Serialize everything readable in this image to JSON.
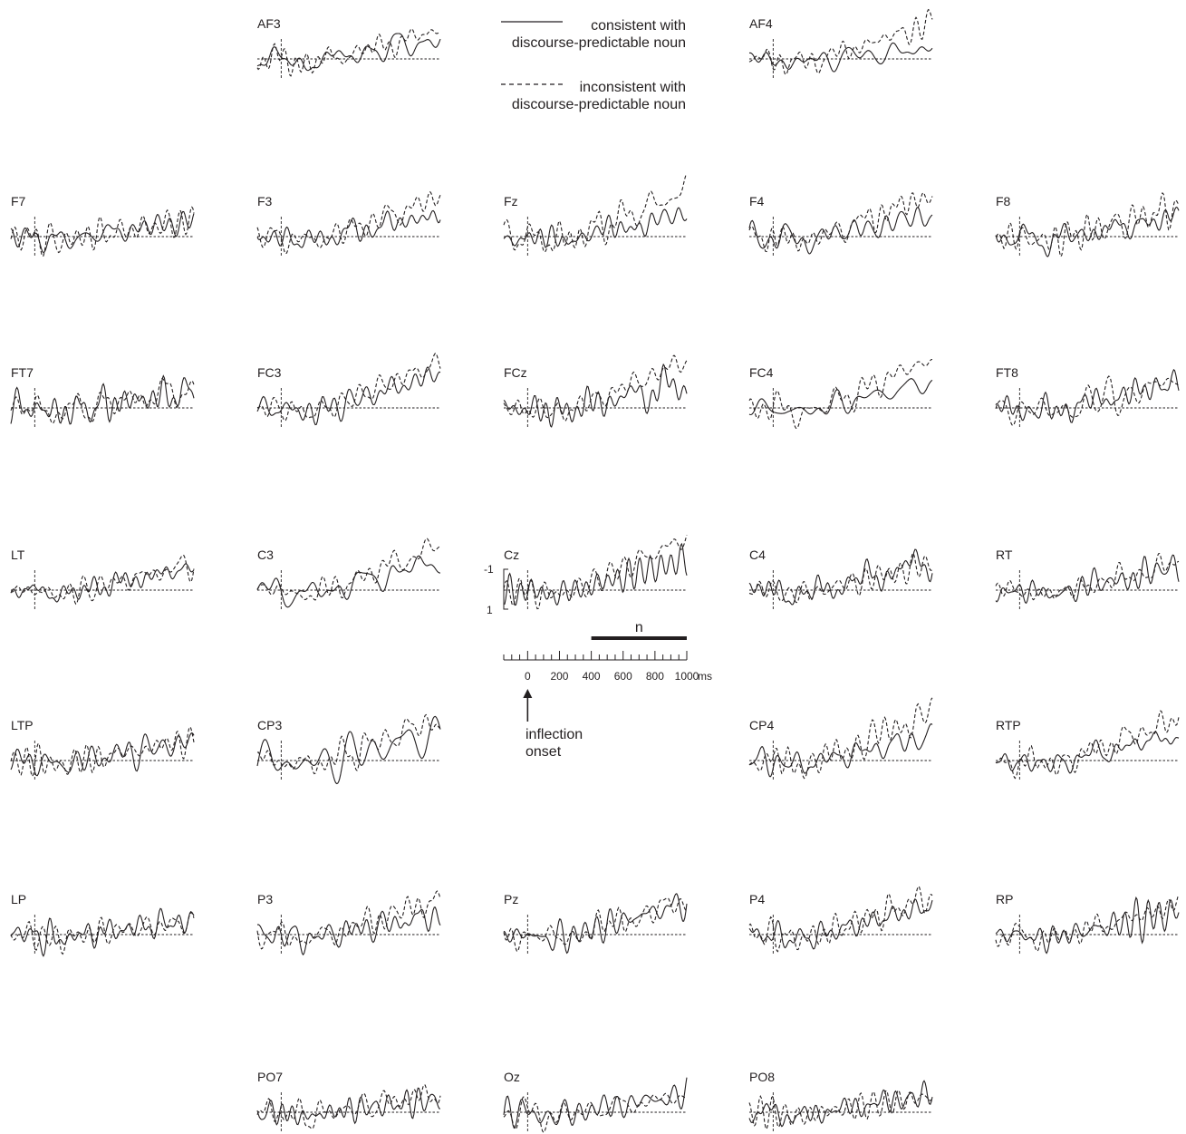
{
  "chart_data": {
    "type": "line",
    "legend": {
      "placement": "top-center",
      "entries": [
        {
          "line_style": "solid",
          "label_line1": "consistent with",
          "label_line2": "discourse-predictable noun"
        },
        {
          "line_style": "dashed",
          "label_line1": "inconsistent with",
          "label_line2": "discourse-predictable noun"
        }
      ]
    },
    "scale": {
      "amplitude_ticks": [
        "-1",
        "1"
      ],
      "window_label": "n",
      "window_ms": [
        400,
        1000
      ],
      "time_ticks": [
        "0",
        "200",
        "400",
        "600",
        "800",
        "1000"
      ],
      "time_unit": "ms",
      "xlim_ms": [
        -150,
        1000
      ],
      "annotation_line1": "inflection",
      "annotation_line2": "onset"
    },
    "series_names": [
      "consistent with discourse-predictable noun",
      "inconsistent with discourse-predictable noun"
    ],
    "electrodes": [
      {
        "label": "AF3",
        "row": 0,
        "col": 1,
        "end_solid": 1.25,
        "end_dashed": 1.7
      },
      {
        "label": "AF4",
        "row": 0,
        "col": 3,
        "end_solid": 0.6,
        "end_dashed": 2.2
      },
      {
        "label": "F7",
        "row": 1,
        "col": 0,
        "end_solid": 1.0,
        "end_dashed": 1.0
      },
      {
        "label": "F3",
        "row": 1,
        "col": 1,
        "end_solid": 1.4,
        "end_dashed": 2.4
      },
      {
        "label": "Fz",
        "row": 1,
        "col": 2,
        "end_solid": 1.3,
        "end_dashed": 2.8
      },
      {
        "label": "F4",
        "row": 1,
        "col": 3,
        "end_solid": 1.3,
        "end_dashed": 2.6
      },
      {
        "label": "F8",
        "row": 1,
        "col": 4,
        "end_solid": 1.2,
        "end_dashed": 1.8
      },
      {
        "label": "FT7",
        "row": 2,
        "col": 0,
        "end_solid": 1.0,
        "end_dashed": 1.2
      },
      {
        "label": "FC3",
        "row": 2,
        "col": 1,
        "end_solid": 2.1,
        "end_dashed": 2.8
      },
      {
        "label": "FCz",
        "row": 2,
        "col": 2,
        "end_solid": 1.5,
        "end_dashed": 2.9
      },
      {
        "label": "FC4",
        "row": 2,
        "col": 3,
        "end_solid": 1.6,
        "end_dashed": 3.0
      },
      {
        "label": "FT8",
        "row": 2,
        "col": 4,
        "end_solid": 1.6,
        "end_dashed": 1.6
      },
      {
        "label": "LT",
        "row": 3,
        "col": 0,
        "end_solid": 1.4,
        "end_dashed": 1.6
      },
      {
        "label": "C3",
        "row": 3,
        "col": 1,
        "end_solid": 1.8,
        "end_dashed": 2.8
      },
      {
        "label": "Cz",
        "row": 3,
        "col": 2,
        "end_solid": 1.9,
        "end_dashed": 3.2
      },
      {
        "label": "C4",
        "row": 3,
        "col": 3,
        "end_solid": 1.8,
        "end_dashed": 1.6
      },
      {
        "label": "RT",
        "row": 3,
        "col": 4,
        "end_solid": 1.4,
        "end_dashed": 1.6
      },
      {
        "label": "LTP",
        "row": 4,
        "col": 0,
        "end_solid": 1.2,
        "end_dashed": 1.3
      },
      {
        "label": "CP3",
        "row": 4,
        "col": 1,
        "end_solid": 1.7,
        "end_dashed": 2.6
      },
      {
        "label": "CP4",
        "row": 4,
        "col": 3,
        "end_solid": 1.5,
        "end_dashed": 3.0
      },
      {
        "label": "RTP",
        "row": 4,
        "col": 4,
        "end_solid": 1.6,
        "end_dashed": 2.6
      },
      {
        "label": "LP",
        "row": 5,
        "col": 0,
        "end_solid": 0.9,
        "end_dashed": 0.8
      },
      {
        "label": "P3",
        "row": 5,
        "col": 1,
        "end_solid": 1.2,
        "end_dashed": 2.2
      },
      {
        "label": "Pz",
        "row": 5,
        "col": 2,
        "end_solid": 2.0,
        "end_dashed": 2.0
      },
      {
        "label": "P4",
        "row": 5,
        "col": 3,
        "end_solid": 1.8,
        "end_dashed": 2.4
      },
      {
        "label": "RP",
        "row": 5,
        "col": 4,
        "end_solid": 1.4,
        "end_dashed": 1.8
      },
      {
        "label": "PO7",
        "row": 6,
        "col": 1,
        "end_solid": 0.8,
        "end_dashed": 1.2
      },
      {
        "label": "Oz",
        "row": 6,
        "col": 2,
        "end_solid": 1.1,
        "end_dashed": 1.0
      },
      {
        "label": "PO8",
        "row": 6,
        "col": 3,
        "end_solid": 1.1,
        "end_dashed": 1.0
      }
    ]
  }
}
